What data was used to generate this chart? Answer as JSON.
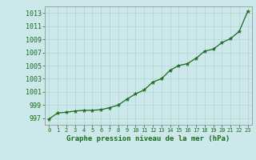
{
  "x": [
    0,
    1,
    2,
    3,
    4,
    5,
    6,
    7,
    8,
    9,
    10,
    11,
    12,
    13,
    14,
    15,
    16,
    17,
    18,
    19,
    20,
    21,
    22,
    23
  ],
  "y": [
    996.9,
    997.8,
    997.9,
    998.1,
    998.2,
    998.2,
    998.3,
    998.6,
    999.0,
    999.9,
    1000.7,
    1001.3,
    1002.5,
    1003.0,
    1004.3,
    1005.0,
    1005.3,
    1006.1,
    1007.2,
    1007.5,
    1008.5,
    1009.1,
    1010.2,
    1013.3
  ],
  "line_color": "#1a6b1a",
  "marker_color": "#1a6b1a",
  "bg_color": "#cce8ea",
  "grid_color": "#b0d4d4",
  "xlabel": "Graphe pression niveau de la mer (hPa)",
  "xlabel_color": "#1a6b1a",
  "tick_color": "#1a6b1a",
  "spine_color": "#888888",
  "ylim": [
    996.0,
    1014.0
  ],
  "xlim": [
    -0.5,
    23.5
  ],
  "yticks": [
    997,
    999,
    1001,
    1003,
    1005,
    1007,
    1009,
    1011,
    1013
  ],
  "xticks": [
    0,
    1,
    2,
    3,
    4,
    5,
    6,
    7,
    8,
    9,
    10,
    11,
    12,
    13,
    14,
    15,
    16,
    17,
    18,
    19,
    20,
    21,
    22,
    23
  ],
  "ytick_fontsize": 6,
  "xtick_fontsize": 5,
  "xlabel_fontsize": 6.5,
  "linewidth": 0.9,
  "markersize": 3.5
}
